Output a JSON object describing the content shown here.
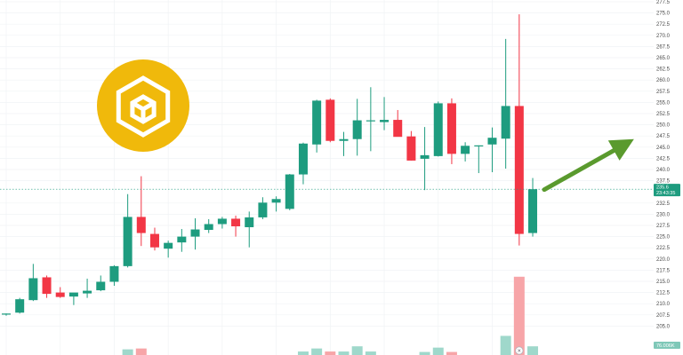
{
  "colors": {
    "up": "#1e9c7f",
    "down": "#f23645",
    "vol_up": "#9fd8cb",
    "vol_down": "#f7a5a8",
    "grid": "#f0f3f5",
    "arrow": "#5a9a2e",
    "logo_bg": "#f0b90b",
    "tag_bg": "#1e9c7f",
    "vol_tag_bg": "#7fc8b8"
  },
  "logo": {
    "name": "bnb-logo",
    "text": "BNB"
  },
  "price_tag": {
    "price": "235.6",
    "countdown": "23:43:35"
  },
  "volume_tag": {
    "value": "76.006K"
  },
  "footer_icon": {
    "name": "close-icon",
    "symbol": "×"
  },
  "chart_data": {
    "type": "candlestick",
    "y_range": [
      202.5,
      277.5
    ],
    "y_ticks": [
      "277.5",
      "275.0",
      "272.5",
      "270.0",
      "267.5",
      "265.0",
      "262.5",
      "260.0",
      "257.5",
      "255.0",
      "252.5",
      "250.0",
      "247.5",
      "245.0",
      "242.5",
      "240.0",
      "237.5",
      "232.5",
      "230.0",
      "227.5",
      "225.0",
      "222.5",
      "220.0",
      "217.5",
      "215.0",
      "212.5",
      "210.0",
      "207.5",
      "205.0"
    ],
    "candles": [
      {
        "o": 207.6,
        "h": 207.8,
        "l": 207.3,
        "c": 207.8
      },
      {
        "o": 208.0,
        "h": 211.3,
        "l": 207.8,
        "c": 211.0
      },
      {
        "o": 210.8,
        "h": 218.9,
        "l": 210.6,
        "c": 215.7
      },
      {
        "o": 215.9,
        "h": 216.3,
        "l": 211.3,
        "c": 212.2
      },
      {
        "o": 212.5,
        "h": 213.7,
        "l": 211.3,
        "c": 211.5
      },
      {
        "o": 211.6,
        "h": 212.1,
        "l": 209.7,
        "c": 212.5
      },
      {
        "o": 212.3,
        "h": 215.6,
        "l": 211.3,
        "c": 212.9
      },
      {
        "o": 213.0,
        "h": 216.3,
        "l": 212.8,
        "c": 214.9
      },
      {
        "o": 214.9,
        "h": 218.6,
        "l": 214.0,
        "c": 218.4
      },
      {
        "o": 218.4,
        "h": 234.5,
        "l": 218.1,
        "c": 229.4
      },
      {
        "o": 229.4,
        "h": 238.5,
        "l": 222.9,
        "c": 225.8
      },
      {
        "o": 225.6,
        "h": 227.0,
        "l": 221.9,
        "c": 222.6
      },
      {
        "o": 222.3,
        "h": 224.1,
        "l": 220.3,
        "c": 223.6
      },
      {
        "o": 223.7,
        "h": 226.7,
        "l": 221.6,
        "c": 225.0
      },
      {
        "o": 225.0,
        "h": 229.1,
        "l": 222.1,
        "c": 226.6
      },
      {
        "o": 226.5,
        "h": 228.9,
        "l": 225.8,
        "c": 227.8
      },
      {
        "o": 227.8,
        "h": 229.4,
        "l": 226.8,
        "c": 229.0
      },
      {
        "o": 229.0,
        "h": 229.7,
        "l": 225.0,
        "c": 227.3
      },
      {
        "o": 227.1,
        "h": 230.6,
        "l": 222.6,
        "c": 229.3
      },
      {
        "o": 229.3,
        "h": 233.8,
        "l": 228.9,
        "c": 232.6
      },
      {
        "o": 232.6,
        "h": 234.0,
        "l": 230.6,
        "c": 233.4
      },
      {
        "o": 231.2,
        "h": 239.0,
        "l": 230.9,
        "c": 238.9
      },
      {
        "o": 238.9,
        "h": 246.0,
        "l": 236.7,
        "c": 245.8
      },
      {
        "o": 245.6,
        "h": 255.6,
        "l": 243.8,
        "c": 255.4
      },
      {
        "o": 255.6,
        "h": 255.9,
        "l": 246.1,
        "c": 246.4
      },
      {
        "o": 246.4,
        "h": 248.4,
        "l": 243.0,
        "c": 246.8
      },
      {
        "o": 246.8,
        "h": 255.8,
        "l": 243.1,
        "c": 251.0
      },
      {
        "o": 251.0,
        "h": 258.4,
        "l": 244.1,
        "c": 251.0
      },
      {
        "o": 250.6,
        "h": 256.2,
        "l": 248.8,
        "c": 251.1
      },
      {
        "o": 251.1,
        "h": 253.3,
        "l": 247.6,
        "c": 247.3
      },
      {
        "o": 247.4,
        "h": 248.6,
        "l": 242.0,
        "c": 242.0
      },
      {
        "o": 242.4,
        "h": 249.5,
        "l": 235.4,
        "c": 243.2
      },
      {
        "o": 243.0,
        "h": 255.2,
        "l": 242.9,
        "c": 254.8
      },
      {
        "o": 254.8,
        "h": 255.9,
        "l": 241.2,
        "c": 243.5
      },
      {
        "o": 243.5,
        "h": 246.1,
        "l": 241.8,
        "c": 245.3
      },
      {
        "o": 245.3,
        "h": 245.4,
        "l": 239.2,
        "c": 245.4
      },
      {
        "o": 245.6,
        "h": 249.4,
        "l": 239.4,
        "c": 247.1
      },
      {
        "o": 246.9,
        "h": 269.2,
        "l": 240.2,
        "c": 254.2
      },
      {
        "o": 254.2,
        "h": 274.7,
        "l": 223.0,
        "c": 225.6
      },
      {
        "o": 225.8,
        "h": 238.1,
        "l": 225.0,
        "c": 235.6
      }
    ],
    "volume": [
      {
        "v": 0,
        "up": true
      },
      {
        "v": 0,
        "up": true
      },
      {
        "v": 0,
        "up": true
      },
      {
        "v": 0,
        "up": false
      },
      {
        "v": 0,
        "up": false
      },
      {
        "v": 0,
        "up": true
      },
      {
        "v": 0,
        "up": true
      },
      {
        "v": 0,
        "up": true
      },
      {
        "v": 0,
        "up": true
      },
      {
        "v": 1.3,
        "up": true
      },
      {
        "v": 1.5,
        "up": false
      },
      {
        "v": 0,
        "up": false
      },
      {
        "v": 0,
        "up": true
      },
      {
        "v": 0,
        "up": true
      },
      {
        "v": 0,
        "up": true
      },
      {
        "v": 0,
        "up": true
      },
      {
        "v": 0,
        "up": true
      },
      {
        "v": 0,
        "up": false
      },
      {
        "v": 0,
        "up": true
      },
      {
        "v": 0,
        "up": true
      },
      {
        "v": 0,
        "up": true
      },
      {
        "v": 0,
        "up": true
      },
      {
        "v": 0.8,
        "up": true
      },
      {
        "v": 1.5,
        "up": true
      },
      {
        "v": 0.8,
        "up": false
      },
      {
        "v": 0.8,
        "up": true
      },
      {
        "v": 2.0,
        "up": true
      },
      {
        "v": 0.8,
        "up": true
      },
      {
        "v": 0,
        "up": true
      },
      {
        "v": 0,
        "up": false
      },
      {
        "v": 0,
        "up": false
      },
      {
        "v": 0.7,
        "up": true
      },
      {
        "v": 1.7,
        "up": true
      },
      {
        "v": 0.7,
        "up": false
      },
      {
        "v": 0,
        "up": true
      },
      {
        "v": 0,
        "up": true
      },
      {
        "v": 0,
        "up": true
      },
      {
        "v": 4.4,
        "up": true
      },
      {
        "v": 18.0,
        "up": false
      },
      {
        "v": 2.0,
        "up": true
      }
    ],
    "volume_range": [
      0,
      20
    ],
    "annotation": {
      "type": "arrow",
      "direction": "up-right",
      "from_candle": 39,
      "from_price": 235.5,
      "to_candle": 46.5,
      "to_price": 246.8
    }
  }
}
